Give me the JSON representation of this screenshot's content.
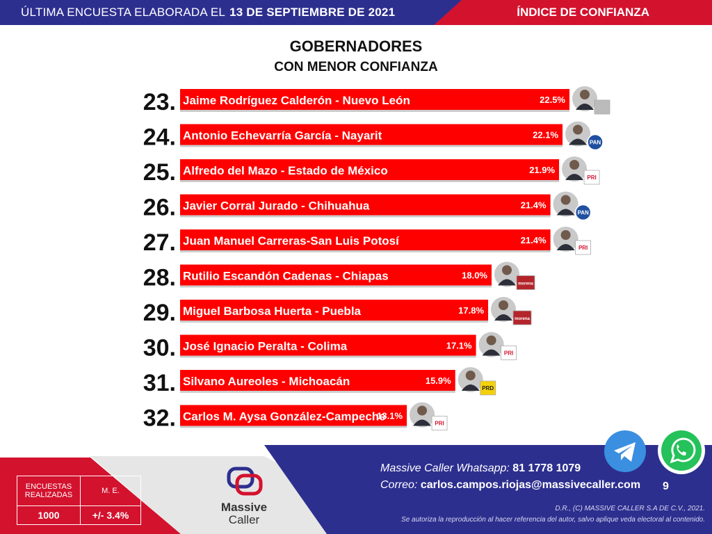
{
  "header": {
    "lead_text": "ÚLTIMA ENCUESTA ELABORADA EL",
    "date": "13 DE SEPTIEMBRE DE 2021",
    "right_text": "ÍNDICE DE CONFIANZA"
  },
  "colors": {
    "blue": "#2d2f8f",
    "red": "#d3122e",
    "bar": "#ff0000"
  },
  "chart_data": {
    "type": "bar",
    "title": "GOBERNADORES",
    "subtitle": "CON MENOR CONFIANZA",
    "orientation": "horizontal",
    "value_suffix": "%",
    "rows": [
      {
        "rank": "23.",
        "label": "Jaime Rodríguez Calderón - Nuevo León",
        "value": 22.5,
        "value_label": "22.5%",
        "party": "independent"
      },
      {
        "rank": "24.",
        "label": "Antonio Echevarría García - Nayarit",
        "value": 22.1,
        "value_label": "22.1%",
        "party": "PAN"
      },
      {
        "rank": "25.",
        "label": "Alfredo del Mazo - Estado de México",
        "value": 21.9,
        "value_label": "21.9%",
        "party": "PRI"
      },
      {
        "rank": "26.",
        "label": "Javier Corral Jurado - Chihuahua",
        "value": 21.4,
        "value_label": "21.4%",
        "party": "PAN"
      },
      {
        "rank": "27.",
        "label": "Juan Manuel Carreras-San Luis Potosí",
        "value": 21.4,
        "value_label": "21.4%",
        "party": "PRI"
      },
      {
        "rank": "28.",
        "label": "Rutilio Escandón Cadenas - Chiapas",
        "value": 18.0,
        "value_label": "18.0%",
        "party": "morena"
      },
      {
        "rank": "29.",
        "label": "Miguel Barbosa Huerta - Puebla",
        "value": 17.8,
        "value_label": "17.8%",
        "party": "morena"
      },
      {
        "rank": "30.",
        "label": "José Ignacio Peralta - Colima",
        "value": 17.1,
        "value_label": "17.1%",
        "party": "PRI"
      },
      {
        "rank": "31.",
        "label": "Silvano Aureoles - Michoacán",
        "value": 15.9,
        "value_label": "15.9%",
        "party": "PRD"
      },
      {
        "rank": "32.",
        "label": "Carlos M. Aysa González-Campeche",
        "value": 13.1,
        "value_label": "13.1%",
        "party": "PRI"
      }
    ]
  },
  "stats": {
    "col1_header": "ENCUESTAS REALIZADAS",
    "col2_header": "M. E.",
    "col1_value": "1000",
    "col2_value": "+/- 3.4%"
  },
  "logo": {
    "line1": "Massive",
    "line2": "Caller"
  },
  "contact": {
    "whatsapp_label": "Massive Caller Whatsapp:",
    "whatsapp_number": "81 1778 1079",
    "email_label": "Correo:",
    "email": "carlos.campos.riojas@massivecaller.com",
    "page_number": "9"
  },
  "legal": {
    "line1": "D.R., (C) MASSIVE CALLER S.A DE C.V., 2021.",
    "line2": "Se autoriza la reproducción al hacer referencia del autor, salvo aplique veda electoral al contenido."
  },
  "icons": {
    "telegram": "telegram-icon",
    "whatsapp": "whatsapp-icon",
    "avatar": "avatar-icon"
  }
}
